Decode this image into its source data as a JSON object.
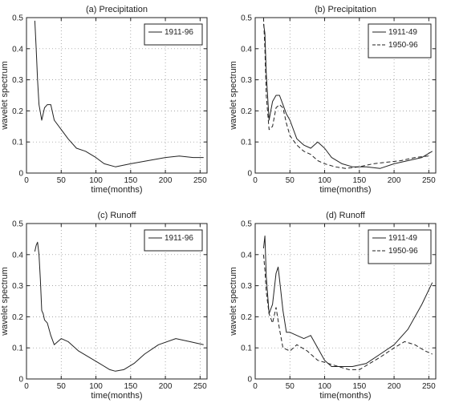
{
  "chart_data": [
    {
      "type": "line",
      "title": "(a) Precipitation",
      "xlabel": "time(months)",
      "ylabel": "wavelet spectrum",
      "xlim": [
        0,
        260
      ],
      "ylim": [
        0,
        0.5
      ],
      "xticks": [
        0,
        50,
        100,
        150,
        200,
        250
      ],
      "yticks": [
        0,
        0.1,
        0.2,
        0.3,
        0.4,
        0.5
      ],
      "legend_position": "top-right",
      "series": [
        {
          "name": "1911-96",
          "style": "solid",
          "x": [
            12,
            14,
            16,
            18,
            22,
            26,
            30,
            35,
            40,
            50,
            60,
            72,
            85,
            100,
            112,
            128,
            150,
            175,
            200,
            220,
            240,
            255
          ],
          "y": [
            0.49,
            0.4,
            0.3,
            0.22,
            0.17,
            0.21,
            0.22,
            0.22,
            0.17,
            0.14,
            0.11,
            0.08,
            0.07,
            0.05,
            0.03,
            0.02,
            0.03,
            0.04,
            0.05,
            0.055,
            0.05,
            0.05
          ]
        }
      ]
    },
    {
      "type": "line",
      "title": "(b) Precipitation",
      "xlabel": "time(months)",
      "ylabel": "wavelet spectrum",
      "xlim": [
        0,
        260
      ],
      "ylim": [
        0,
        0.5
      ],
      "xticks": [
        0,
        50,
        100,
        150,
        200,
        250
      ],
      "yticks": [
        0,
        0.1,
        0.2,
        0.3,
        0.4,
        0.5
      ],
      "legend_position": "top-right",
      "series": [
        {
          "name": "1911-49",
          "style": "solid",
          "x": [
            12,
            14,
            16,
            20,
            25,
            30,
            35,
            40,
            45,
            50,
            60,
            70,
            80,
            90,
            100,
            110,
            125,
            140,
            160,
            180,
            200,
            220,
            240,
            255
          ],
          "y": [
            0.48,
            0.45,
            0.32,
            0.17,
            0.23,
            0.25,
            0.25,
            0.22,
            0.19,
            0.17,
            0.11,
            0.09,
            0.08,
            0.1,
            0.08,
            0.05,
            0.03,
            0.02,
            0.02,
            0.015,
            0.03,
            0.04,
            0.05,
            0.07
          ]
        },
        {
          "name": "1950-96",
          "style": "dashed",
          "x": [
            12,
            14,
            16,
            20,
            25,
            30,
            35,
            40,
            45,
            50,
            60,
            70,
            80,
            90,
            100,
            115,
            130,
            150,
            170,
            190,
            210,
            230,
            250
          ],
          "y": [
            0.5,
            0.4,
            0.25,
            0.14,
            0.15,
            0.21,
            0.22,
            0.21,
            0.16,
            0.12,
            0.09,
            0.07,
            0.06,
            0.04,
            0.03,
            0.02,
            0.015,
            0.02,
            0.03,
            0.035,
            0.04,
            0.05,
            0.055
          ]
        }
      ]
    },
    {
      "type": "line",
      "title": "(c) Runoff",
      "xlabel": "time(months)",
      "ylabel": "wavelet spectrum",
      "xlim": [
        0,
        260
      ],
      "ylim": [
        0,
        0.5
      ],
      "xticks": [
        0,
        50,
        100,
        150,
        200,
        250
      ],
      "yticks": [
        0,
        0.1,
        0.2,
        0.3,
        0.4,
        0.5
      ],
      "legend_position": "top-right",
      "series": [
        {
          "name": "1911-96",
          "style": "solid",
          "x": [
            12,
            14,
            16,
            18,
            20,
            22,
            24,
            26,
            30,
            35,
            40,
            50,
            60,
            75,
            90,
            105,
            120,
            128,
            140,
            155,
            170,
            190,
            215,
            235,
            255
          ],
          "y": [
            0.41,
            0.43,
            0.44,
            0.4,
            0.32,
            0.22,
            0.21,
            0.19,
            0.18,
            0.14,
            0.11,
            0.13,
            0.12,
            0.09,
            0.07,
            0.05,
            0.03,
            0.025,
            0.03,
            0.05,
            0.08,
            0.11,
            0.13,
            0.12,
            0.11
          ]
        }
      ]
    },
    {
      "type": "line",
      "title": "(d) Runoff",
      "xlabel": "time(months)",
      "ylabel": "wavelet spectrum",
      "xlim": [
        0,
        260
      ],
      "ylim": [
        0,
        0.5
      ],
      "xticks": [
        0,
        50,
        100,
        150,
        200,
        250
      ],
      "yticks": [
        0,
        0.1,
        0.2,
        0.3,
        0.4,
        0.5
      ],
      "legend_position": "top-right",
      "series": [
        {
          "name": "1911-49",
          "style": "solid",
          "x": [
            12,
            14,
            16,
            20,
            25,
            30,
            33,
            36,
            40,
            45,
            50,
            60,
            70,
            80,
            90,
            100,
            110,
            125,
            140,
            160,
            180,
            200,
            220,
            240,
            255
          ],
          "y": [
            0.42,
            0.46,
            0.33,
            0.21,
            0.24,
            0.34,
            0.36,
            0.3,
            0.22,
            0.15,
            0.15,
            0.14,
            0.13,
            0.14,
            0.1,
            0.06,
            0.04,
            0.04,
            0.04,
            0.05,
            0.08,
            0.11,
            0.16,
            0.24,
            0.31
          ]
        },
        {
          "name": "1950-96",
          "style": "dashed",
          "x": [
            12,
            14,
            16,
            20,
            25,
            30,
            35,
            40,
            50,
            60,
            75,
            90,
            105,
            120,
            135,
            150,
            165,
            180,
            200,
            215,
            230,
            245,
            255
          ],
          "y": [
            0.4,
            0.35,
            0.28,
            0.21,
            0.18,
            0.23,
            0.16,
            0.1,
            0.09,
            0.11,
            0.09,
            0.06,
            0.05,
            0.04,
            0.03,
            0.03,
            0.05,
            0.07,
            0.1,
            0.12,
            0.11,
            0.09,
            0.08
          ]
        }
      ]
    }
  ]
}
